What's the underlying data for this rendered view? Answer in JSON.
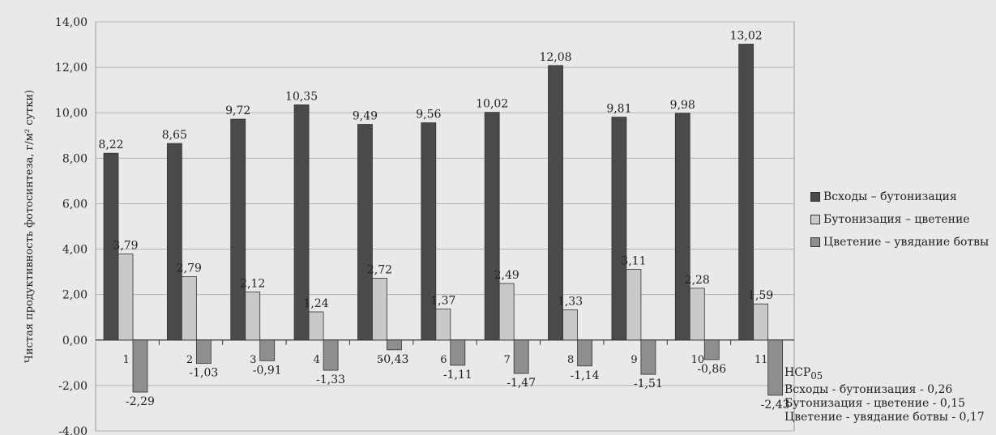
{
  "chart_data": {
    "type": "bar",
    "ylabel": "Чистая продуктивность фотосинтеза, г/м² сутки)",
    "categories": [
      "1",
      "2",
      "3",
      "4",
      "5",
      "6",
      "7",
      "8",
      "9",
      "10",
      "11"
    ],
    "ylim": [
      -4,
      14
    ],
    "yticks": [
      "-4,00",
      "-2,00",
      "0,00",
      "2,00",
      "4,00",
      "6,00",
      "8,00",
      "10,00",
      "12,00",
      "14,00"
    ],
    "grid": "horizontal",
    "legend_position": "right",
    "series": [
      {
        "name": "Всходы – бутонизация",
        "color": "#4a4a4a",
        "values": [
          8.22,
          8.65,
          9.72,
          10.35,
          9.49,
          9.56,
          10.02,
          12.08,
          9.81,
          9.98,
          13.02
        ],
        "labels": [
          "8,22",
          "8,65",
          "9,72",
          "10,35",
          "9,49",
          "9,56",
          "10,02",
          "12,08",
          "9,81",
          "9,98",
          "13,02"
        ]
      },
      {
        "name": "Бутонизация – цветение",
        "color": "#c9c9c9",
        "values": [
          3.79,
          2.79,
          2.12,
          1.24,
          2.72,
          1.37,
          2.49,
          1.33,
          3.11,
          2.28,
          1.59
        ],
        "labels": [
          "3,79",
          "2,79",
          "2,12",
          "1,24",
          "2,72",
          "1,37",
          "2,49",
          "1,33",
          "3,11",
          "2,28",
          "1,59"
        ]
      },
      {
        "name": "Цветение – увядание ботвы",
        "color": "#8e8e8e",
        "values": [
          -2.29,
          -1.03,
          -0.91,
          -1.33,
          -0.43,
          -1.11,
          -1.47,
          -1.14,
          -1.51,
          -0.86,
          -2.43
        ],
        "labels": [
          "-2,29",
          "-1,03",
          "-0,91",
          "-1,33",
          "-0,43",
          "-1,11",
          "-1,47",
          "-1,14",
          "-1,51",
          "-0,86",
          "-2,43"
        ]
      }
    ]
  },
  "note": {
    "title": "НСР",
    "title_sub": "05",
    "lines": [
      "Всходы - бутонизация - 0,26",
      "Бутонизация - цветение - 0,15",
      "Цветение - увядание ботвы - 0,17"
    ]
  }
}
